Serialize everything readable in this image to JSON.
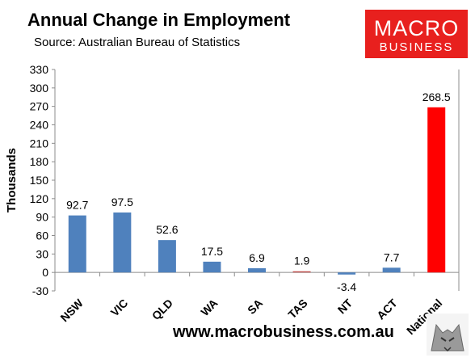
{
  "title": "Annual Change in Employment",
  "subtitle": "Source: Australian Bureau of Statistics",
  "logo": {
    "line1": "MACRO",
    "line2": "BUSINESS"
  },
  "website": "www.macrobusiness.com.au",
  "colors": {
    "bar": "#4f81bd",
    "national": "#ff0000",
    "tas": "#c0504d",
    "logo_bg": "#e8201e"
  },
  "chart_data": {
    "type": "bar",
    "categories": [
      "NSW",
      "VIC",
      "QLD",
      "WA",
      "SA",
      "TAS",
      "NT",
      "ACT",
      "National"
    ],
    "values": [
      92.7,
      97.5,
      52.6,
      17.5,
      6.9,
      1.9,
      -3.4,
      7.7,
      268.5
    ],
    "data_labels": [
      "92.7",
      "97.5",
      "52.6",
      "17.5",
      "6.9",
      "1.9",
      "-3.4",
      "7.7",
      "268.5"
    ],
    "title": "Annual Change in Employment",
    "ylabel": "Thousands",
    "xlabel": "",
    "ylim": [
      -30,
      330
    ],
    "yticks": [
      -30,
      0,
      30,
      60,
      90,
      120,
      150,
      180,
      210,
      240,
      270,
      300,
      330
    ],
    "grid": false,
    "legend": "none"
  }
}
